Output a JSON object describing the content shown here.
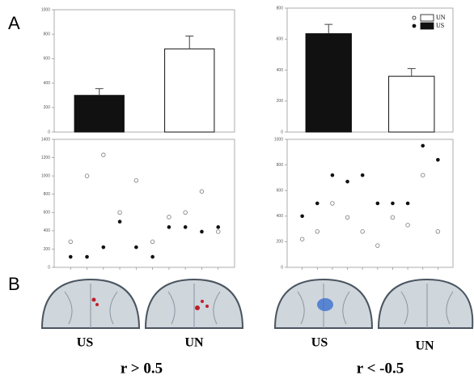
{
  "panel_labels": [
    "A",
    "B"
  ],
  "brain_labels": [
    "US",
    "UN",
    "US",
    "UN"
  ],
  "group_labels": [
    "r > 0.5",
    "r < -0.5"
  ],
  "chart_data": [
    {
      "type": "bar",
      "categories": [
        null,
        null
      ],
      "values": [
        300,
        680
      ],
      "errors": [
        55,
        105
      ],
      "colors": [
        "#111111",
        "#ffffff"
      ],
      "ylim": [
        0,
        1000
      ],
      "yticks": [
        0,
        200,
        400,
        600,
        800,
        1000
      ]
    },
    {
      "type": "bar",
      "categories": [
        null,
        null
      ],
      "values": [
        635,
        360
      ],
      "errors": [
        60,
        50
      ],
      "colors": [
        "#111111",
        "#ffffff"
      ],
      "ylim": [
        0,
        800
      ],
      "yticks": [
        0,
        200,
        400,
        600,
        800
      ],
      "legend": [
        {
          "name": "UN",
          "color": "#ffffff"
        },
        {
          "name": "US",
          "color": "#111111"
        }
      ]
    },
    {
      "type": "scatter",
      "x": [
        1,
        2,
        3,
        4,
        5,
        6,
        7,
        8,
        9,
        10
      ],
      "xlim": [
        0,
        11
      ],
      "series": [
        {
          "marker": "open",
          "color": "#888888",
          "values": [
            280,
            1000,
            1230,
            600,
            950,
            280,
            550,
            600,
            830,
            390
          ]
        },
        {
          "marker": "filled",
          "color": "#111111",
          "values": [
            115,
            115,
            220,
            500,
            220,
            115,
            440,
            440,
            390,
            440
          ]
        }
      ],
      "ylim": [
        0,
        1400
      ],
      "yticks": [
        0,
        200,
        400,
        600,
        800,
        1000,
        1200,
        1400
      ]
    },
    {
      "type": "scatter",
      "x": [
        1,
        2,
        3,
        4,
        5,
        6,
        7,
        8,
        9,
        10
      ],
      "xlim": [
        0,
        11
      ],
      "series": [
        {
          "marker": "open",
          "color": "#888888",
          "values": [
            220,
            280,
            500,
            390,
            280,
            170,
            390,
            330,
            720,
            280
          ]
        },
        {
          "marker": "filled",
          "color": "#111111",
          "values": [
            400,
            500,
            720,
            670,
            720,
            500,
            500,
            500,
            950,
            840
          ]
        }
      ],
      "ylim": [
        0,
        1000
      ],
      "yticks": [
        0,
        200,
        400,
        600,
        800,
        1000
      ]
    }
  ]
}
